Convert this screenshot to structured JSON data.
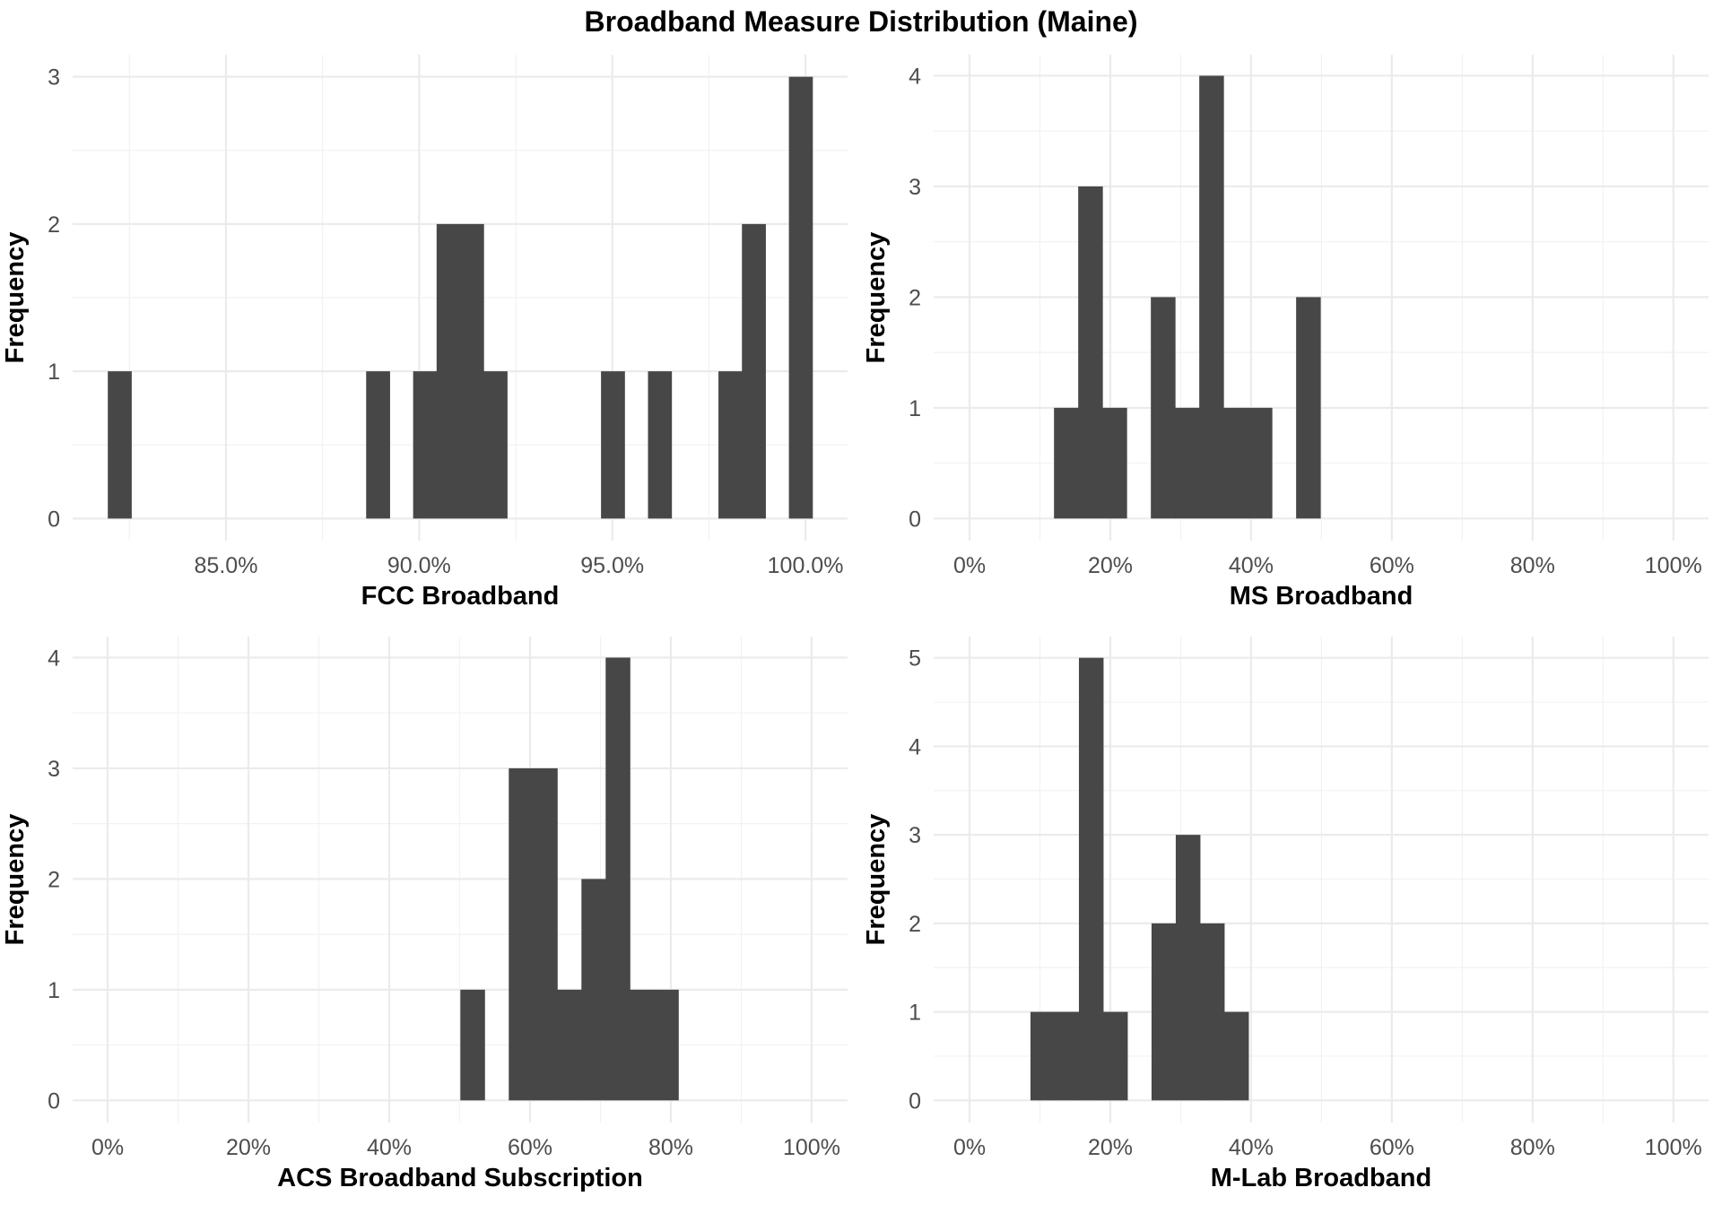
{
  "title": "Broadband Measure Distribution (Maine)",
  "colors": {
    "bar": "#474747",
    "grid_major": "#ebebeb",
    "grid_minor": "#f2f2f2",
    "tick_text": "#4d4d4d",
    "title_text": "#000000"
  },
  "chart_data": [
    {
      "type": "bar",
      "subtype": "histogram",
      "panel": "top-left",
      "xlabel": "FCC Broadband",
      "ylabel": "Frequency",
      "x_unit": "percent",
      "xlim": [
        81.03,
        101.09
      ],
      "ylim": [
        -0.15,
        3.15
      ],
      "x_ticks": [
        85,
        90,
        95,
        100
      ],
      "x_tick_labels": [
        "85.0%",
        "90.0%",
        "95.0%",
        "100.0%"
      ],
      "x_minor_ticks": [
        82.5,
        87.5,
        92.5,
        97.5
      ],
      "y_ticks": [
        0,
        1,
        2,
        3
      ],
      "y_tick_labels": [
        "0",
        "1",
        "2",
        "3"
      ],
      "y_minor_ticks": [
        0.5,
        1.5,
        2.5
      ],
      "bin_start": 81.94,
      "bin_width": 0.608,
      "counts": [
        1,
        0,
        0,
        0,
        0,
        0,
        0,
        0,
        0,
        0,
        0,
        1,
        0,
        1,
        2,
        2,
        1,
        0,
        0,
        0,
        0,
        1,
        0,
        1,
        0,
        0,
        1,
        2,
        0,
        3
      ],
      "grid": true
    },
    {
      "type": "bar",
      "subtype": "histogram",
      "panel": "top-right",
      "xlabel": "MS Broadband",
      "ylabel": "Frequency",
      "x_unit": "percent",
      "xlim": [
        -5.1,
        105.0
      ],
      "ylim": [
        -0.2,
        4.19
      ],
      "x_ticks": [
        0,
        20,
        40,
        60,
        80,
        100
      ],
      "x_tick_labels": [
        "0%",
        "20%",
        "40%",
        "60%",
        "80%",
        "100%"
      ],
      "x_minor_ticks": [
        10,
        30,
        50,
        70,
        90
      ],
      "y_ticks": [
        0,
        1,
        2,
        3,
        4
      ],
      "y_tick_labels": [
        "0",
        "1",
        "2",
        "3",
        "4"
      ],
      "y_minor_ticks": [
        0.5,
        1.5,
        2.5,
        3.5
      ],
      "bin_start": 12.0,
      "bin_width": 3.44,
      "counts": [
        1,
        3,
        1,
        0,
        2,
        1,
        4,
        1,
        1,
        0,
        2
      ],
      "grid": true
    },
    {
      "type": "bar",
      "subtype": "histogram",
      "panel": "bottom-left",
      "xlabel": "ACS Broadband Subscription",
      "ylabel": "Frequency",
      "x_unit": "percent",
      "xlim": [
        -4.97,
        105.1
      ],
      "ylim": [
        -0.2,
        4.19
      ],
      "x_ticks": [
        0,
        20,
        40,
        60,
        80,
        100
      ],
      "x_tick_labels": [
        "0%",
        "20%",
        "40%",
        "60%",
        "80%",
        "100%"
      ],
      "x_minor_ticks": [
        10,
        30,
        50,
        70,
        90
      ],
      "y_ticks": [
        0,
        1,
        2,
        3,
        4
      ],
      "y_tick_labels": [
        "0",
        "1",
        "2",
        "3",
        "4"
      ],
      "y_minor_ticks": [
        0.5,
        1.5,
        2.5,
        3.5
      ],
      "bin_start": 50.1,
      "bin_width": 3.44,
      "counts": [
        1,
        0,
        3,
        3,
        1,
        2,
        4,
        1,
        1
      ],
      "grid": true
    },
    {
      "type": "bar",
      "subtype": "histogram",
      "panel": "bottom-right",
      "xlabel": "M-Lab Broadband",
      "ylabel": "Frequency",
      "x_unit": "percent",
      "xlim": [
        -5.1,
        105.0
      ],
      "ylim": [
        -0.25,
        5.24
      ],
      "x_ticks": [
        0,
        20,
        40,
        60,
        80,
        100
      ],
      "x_tick_labels": [
        "0%",
        "20%",
        "40%",
        "60%",
        "80%",
        "100%"
      ],
      "x_minor_ticks": [
        10,
        30,
        50,
        70,
        90
      ],
      "y_ticks": [
        0,
        1,
        2,
        3,
        4,
        5
      ],
      "y_tick_labels": [
        "0",
        "1",
        "2",
        "3",
        "4",
        "5"
      ],
      "y_minor_ticks": [
        0.5,
        1.5,
        2.5,
        3.5,
        4.5
      ],
      "bin_start": 8.66,
      "bin_width": 3.44,
      "counts": [
        1,
        1,
        5,
        1,
        0,
        2,
        3,
        2,
        1
      ],
      "grid": true
    }
  ]
}
